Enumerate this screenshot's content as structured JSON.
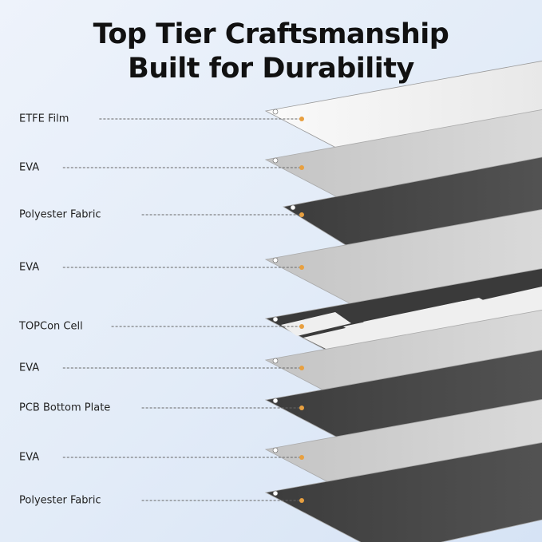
{
  "title_line1": "Top Tier Craftsmanship",
  "title_line2": "Built for Durability",
  "accent_color": "#e8a040",
  "layers": [
    {
      "label": "ETFE Film",
      "material": "film"
    },
    {
      "label": "EVA",
      "material": "eva"
    },
    {
      "label": "Polyester Fabric",
      "material": "fabric"
    },
    {
      "label": "EVA",
      "material": "eva"
    },
    {
      "label": "TOPCon Cell",
      "material": "cell"
    },
    {
      "label": "EVA",
      "material": "eva"
    },
    {
      "label": "PCB Bottom Plate",
      "material": "fabric"
    },
    {
      "label": "EVA",
      "material": "eva"
    },
    {
      "label": "Polyester Fabric",
      "material": "fabric"
    }
  ]
}
